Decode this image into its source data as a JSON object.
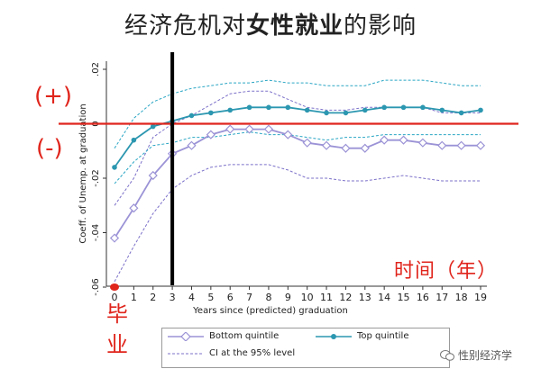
{
  "title": {
    "prefix": "经济危机对",
    "highlight": "女性就业",
    "suffix": "的影响"
  },
  "annotations": {
    "plus": "(+)",
    "minus": "(-)",
    "time": "时间（年）",
    "graduation": "毕\n业"
  },
  "watermark": "性别经济学",
  "colors": {
    "bottom": "#9b93d6",
    "top": "#2c97b0",
    "ci": "#7b70c9",
    "ci_top": "#2aa6c4",
    "red": "#e0251c",
    "black": "#000000"
  },
  "chart_data": {
    "type": "line",
    "xlabel": "Years since (predicted) graduation",
    "ylabel": "Coeff. of Unemp. at graduation",
    "x": [
      0,
      1,
      2,
      3,
      4,
      5,
      6,
      7,
      8,
      9,
      10,
      11,
      12,
      13,
      14,
      15,
      16,
      17,
      18,
      19
    ],
    "xlim": [
      0,
      19
    ],
    "ylim": [
      -0.06,
      0.02
    ],
    "yticks": [
      -0.06,
      -0.04,
      -0.02,
      0,
      0.02
    ],
    "ytick_labels": [
      "-.06",
      "-.04",
      "-.02",
      "0",
      ".02"
    ],
    "vertical_line_x": 3,
    "series": [
      {
        "name": "Bottom quintile",
        "values": [
          -0.042,
          -0.031,
          -0.019,
          -0.011,
          -0.008,
          -0.004,
          -0.002,
          -0.002,
          -0.002,
          -0.004,
          -0.007,
          -0.008,
          -0.009,
          -0.009,
          -0.006,
          -0.006,
          -0.007,
          -0.008,
          -0.008,
          -0.008
        ],
        "ci_upper": [
          -0.03,
          -0.02,
          -0.005,
          0.0,
          0.003,
          0.007,
          0.011,
          0.012,
          0.012,
          0.009,
          0.006,
          0.005,
          0.005,
          0.006,
          0.006,
          0.006,
          0.006,
          0.004,
          0.004,
          0.004
        ],
        "ci_lower": [
          -0.058,
          -0.045,
          -0.033,
          -0.024,
          -0.019,
          -0.016,
          -0.015,
          -0.015,
          -0.015,
          -0.017,
          -0.02,
          -0.02,
          -0.021,
          -0.021,
          -0.02,
          -0.019,
          -0.02,
          -0.021,
          -0.021,
          -0.021
        ]
      },
      {
        "name": "Top quintile",
        "values": [
          -0.016,
          -0.006,
          -0.001,
          0.001,
          0.003,
          0.004,
          0.005,
          0.006,
          0.006,
          0.006,
          0.005,
          0.004,
          0.004,
          0.005,
          0.006,
          0.006,
          0.006,
          0.005,
          0.004,
          0.005
        ],
        "ci_upper": [
          -0.009,
          0.002,
          0.008,
          0.011,
          0.013,
          0.014,
          0.015,
          0.015,
          0.016,
          0.015,
          0.015,
          0.014,
          0.014,
          0.014,
          0.016,
          0.016,
          0.016,
          0.015,
          0.014,
          0.014
        ],
        "ci_lower": [
          -0.022,
          -0.014,
          -0.008,
          -0.007,
          -0.005,
          -0.005,
          -0.004,
          -0.003,
          -0.004,
          -0.004,
          -0.005,
          -0.006,
          -0.005,
          -0.005,
          -0.004,
          -0.004,
          -0.004,
          -0.004,
          -0.004,
          -0.004
        ]
      }
    ],
    "legend": [
      "Bottom quintile",
      "Top quintile",
      "CI at the 95% level"
    ],
    "grid": false,
    "legend_position": "bottom"
  }
}
